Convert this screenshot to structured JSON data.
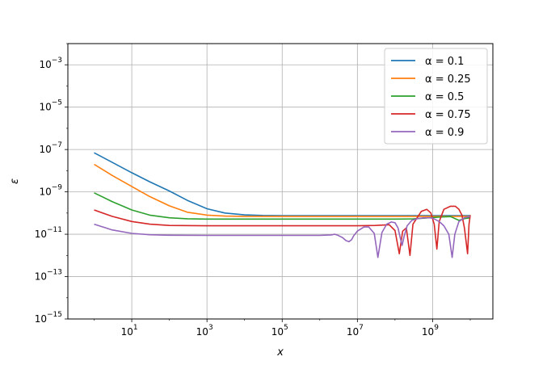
{
  "chart_data": {
    "type": "line",
    "xlabel": "x",
    "ylabel": "ε",
    "xscale": "log",
    "yscale": "log",
    "xlim": [
      0.2,
      40000000000
    ],
    "ylim": [
      1e-15,
      0.01
    ],
    "grid": true,
    "legend_position": "top-right",
    "x_ticks": [
      {
        "value": 10,
        "base": "10",
        "exp": "1"
      },
      {
        "value": 1000,
        "base": "10",
        "exp": "3"
      },
      {
        "value": 100000,
        "base": "10",
        "exp": "5"
      },
      {
        "value": 10000000,
        "base": "10",
        "exp": "7"
      },
      {
        "value": 1000000000,
        "base": "10",
        "exp": "9"
      }
    ],
    "y_ticks": [
      {
        "value": 1e-15,
        "base": "10",
        "exp": "−15"
      },
      {
        "value": 1e-13,
        "base": "10",
        "exp": "−13"
      },
      {
        "value": 1e-11,
        "base": "10",
        "exp": "−11"
      },
      {
        "value": 1e-09,
        "base": "10",
        "exp": "−9"
      },
      {
        "value": 1e-07,
        "base": "10",
        "exp": "−7"
      },
      {
        "value": 1e-05,
        "base": "10",
        "exp": "−5"
      },
      {
        "value": 0.001,
        "base": "10",
        "exp": "−3"
      }
    ],
    "series": [
      {
        "name": "α = 0.1",
        "color": "#1f77b4",
        "points": [
          [
            1,
            7e-08
          ],
          [
            3,
            2.5e-08
          ],
          [
            10,
            8e-09
          ],
          [
            30,
            3e-09
          ],
          [
            100,
            1.1e-09
          ],
          [
            300,
            4e-10
          ],
          [
            1000,
            1.6e-10
          ],
          [
            3000,
            1e-10
          ],
          [
            10000,
            8.2e-11
          ],
          [
            30000,
            7.7e-11
          ],
          [
            100000,
            7.6e-11
          ],
          [
            1000000.0,
            7.6e-11
          ],
          [
            10000000.0,
            7.6e-11
          ],
          [
            100000000.0,
            7.6e-11
          ],
          [
            1000000000.0,
            7.6e-11
          ],
          [
            10000000000.0,
            7.6e-11
          ]
        ]
      },
      {
        "name": "α = 0.25",
        "color": "#ff7f0e",
        "points": [
          [
            1,
            2e-08
          ],
          [
            3,
            6e-09
          ],
          [
            10,
            1.8e-09
          ],
          [
            30,
            6e-10
          ],
          [
            100,
            2.2e-10
          ],
          [
            300,
            1.1e-10
          ],
          [
            1000,
            8e-11
          ],
          [
            3000,
            7.2e-11
          ],
          [
            10000,
            7e-11
          ],
          [
            100000,
            7e-11
          ],
          [
            1000000.0,
            7e-11
          ],
          [
            10000000.0,
            7e-11
          ],
          [
            100000000.0,
            7e-11
          ],
          [
            1000000000.0,
            7e-11
          ],
          [
            10000000000.0,
            7e-11
          ]
        ]
      },
      {
        "name": "α = 0.5",
        "color": "#2ca02c",
        "points": [
          [
            1,
            9e-10
          ],
          [
            3,
            3.5e-10
          ],
          [
            10,
            1.4e-10
          ],
          [
            30,
            8e-11
          ],
          [
            100,
            6e-11
          ],
          [
            300,
            5.4e-11
          ],
          [
            1000,
            5.2e-11
          ],
          [
            10000,
            5.2e-11
          ],
          [
            1000000.0,
            5.2e-11
          ],
          [
            100000000.0,
            5.2e-11
          ],
          [
            300000000.0,
            5.3e-11
          ],
          [
            800000000.0,
            6e-11
          ],
          [
            1500000000.0,
            6.5e-11
          ],
          [
            3000000000.0,
            6.8e-11
          ],
          [
            5000000000.0,
            4.5e-11
          ],
          [
            7000000000.0,
            5.5e-11
          ],
          [
            10000000000.0,
            6e-11
          ]
        ]
      },
      {
        "name": "α = 0.75",
        "color": "#d62728",
        "points": [
          [
            1,
            1.4e-10
          ],
          [
            3,
            7e-11
          ],
          [
            10,
            4e-11
          ],
          [
            30,
            3e-11
          ],
          [
            100,
            2.6e-11
          ],
          [
            1000,
            2.5e-11
          ],
          [
            100000.0,
            2.5e-11
          ],
          [
            1000000.0,
            2.5e-11
          ],
          [
            10000000.0,
            2.5e-11
          ],
          [
            30000000.0,
            2.6e-11
          ],
          [
            70000000.0,
            2.8e-11
          ],
          [
            100000000.0,
            1.5e-11
          ],
          [
            130000000.0,
            1.2e-12
          ],
          [
            160000000.0,
            1.4e-11
          ],
          [
            200000000.0,
            2e-11
          ],
          [
            250000000.0,
            1e-12
          ],
          [
            300000000.0,
            3e-11
          ],
          [
            500000000.0,
            1.2e-10
          ],
          [
            700000000.0,
            1.5e-10
          ],
          [
            900000000.0,
            1e-10
          ],
          [
            1100000000.0,
            3e-11
          ],
          [
            1300000000.0,
            2e-12
          ],
          [
            1500000000.0,
            4e-11
          ],
          [
            2000000000.0,
            1.5e-10
          ],
          [
            3000000000.0,
            2.1e-10
          ],
          [
            4000000000.0,
            2.1e-10
          ],
          [
            5000000000.0,
            1.5e-10
          ],
          [
            6000000000.0,
            8e-11
          ],
          [
            7000000000.0,
            2e-11
          ],
          [
            8500000000.0,
            1.2e-12
          ],
          [
            9300000000.0,
            3e-11
          ],
          [
            10000000000.0,
            8e-11
          ]
        ]
      },
      {
        "name": "α = 0.9",
        "color": "#9467bd",
        "points": [
          [
            1,
            3e-11
          ],
          [
            3,
            1.6e-11
          ],
          [
            10,
            1.1e-11
          ],
          [
            30,
            9.5e-12
          ],
          [
            100,
            9e-12
          ],
          [
            1000,
            8.8e-12
          ],
          [
            100000.0,
            8.8e-12
          ],
          [
            1000000.0,
            8.8e-12
          ],
          [
            2000000.0,
            9.3e-12
          ],
          [
            2500000.0,
            1e-11
          ],
          [
            3000000.0,
            9e-12
          ],
          [
            4000000.0,
            7e-12
          ],
          [
            5000000.0,
            5e-12
          ],
          [
            6000000.0,
            4.5e-12
          ],
          [
            7000000.0,
            5.5e-12
          ],
          [
            8000000.0,
            8.5e-12
          ],
          [
            10000000.0,
            1.4e-11
          ],
          [
            15000000.0,
            2.2e-11
          ],
          [
            20000000.0,
            2.2e-11
          ],
          [
            28000000.0,
            1.1e-11
          ],
          [
            35000000.0,
            8e-13
          ],
          [
            45000000.0,
            1.2e-11
          ],
          [
            60000000.0,
            3e-11
          ],
          [
            80000000.0,
            3.8e-11
          ],
          [
            100000000.0,
            3.5e-11
          ],
          [
            120000000.0,
            2e-11
          ],
          [
            140000000.0,
            6e-12
          ],
          [
            155000000.0,
            3e-12
          ],
          [
            175000000.0,
            8e-12
          ],
          [
            210000000.0,
            2.5e-11
          ],
          [
            280000000.0,
            4.5e-11
          ],
          [
            400000000.0,
            5.5e-11
          ],
          [
            600000000.0,
            6e-11
          ],
          [
            800000000.0,
            6e-11
          ],
          [
            1000000000.0,
            5.8e-11
          ],
          [
            1500000000.0,
            4e-11
          ],
          [
            2000000000.0,
            2.5e-11
          ],
          [
            2700000000.0,
            1e-11
          ],
          [
            3300000000.0,
            8e-13
          ],
          [
            3900000000.0,
            1e-11
          ],
          [
            5000000000.0,
            4e-11
          ],
          [
            7000000000.0,
            6e-11
          ],
          [
            10000000000.0,
            7e-11
          ]
        ]
      }
    ]
  }
}
